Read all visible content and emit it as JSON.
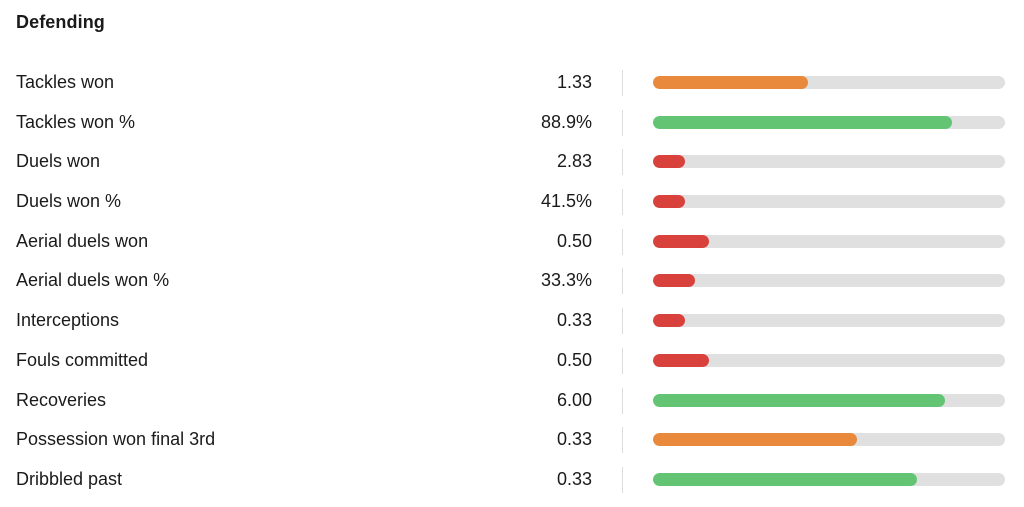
{
  "section": {
    "title": "Defending"
  },
  "colors": {
    "track": "#e0e0e0",
    "good": "#63c574",
    "average": "#e8893c",
    "poor": "#d9413c"
  },
  "stats": [
    {
      "label": "Tackles won",
      "value": "1.33",
      "percentile": 0.44,
      "rating": "average"
    },
    {
      "label": "Tackles won %",
      "value": "88.9%",
      "percentile": 0.85,
      "rating": "good"
    },
    {
      "label": "Duels won",
      "value": "2.83",
      "percentile": 0.09,
      "rating": "poor"
    },
    {
      "label": "Duels won %",
      "value": "41.5%",
      "percentile": 0.09,
      "rating": "poor"
    },
    {
      "label": "Aerial duels won",
      "value": "0.50",
      "percentile": 0.16,
      "rating": "poor"
    },
    {
      "label": "Aerial duels won %",
      "value": "33.3%",
      "percentile": 0.12,
      "rating": "poor"
    },
    {
      "label": "Interceptions",
      "value": "0.33",
      "percentile": 0.09,
      "rating": "poor"
    },
    {
      "label": "Fouls committed",
      "value": "0.50",
      "percentile": 0.16,
      "rating": "poor"
    },
    {
      "label": "Recoveries",
      "value": "6.00",
      "percentile": 0.83,
      "rating": "good"
    },
    {
      "label": "Possession won final 3rd",
      "value": "0.33",
      "percentile": 0.58,
      "rating": "average"
    },
    {
      "label": "Dribbled past",
      "value": "0.33",
      "percentile": 0.75,
      "rating": "good"
    }
  ]
}
